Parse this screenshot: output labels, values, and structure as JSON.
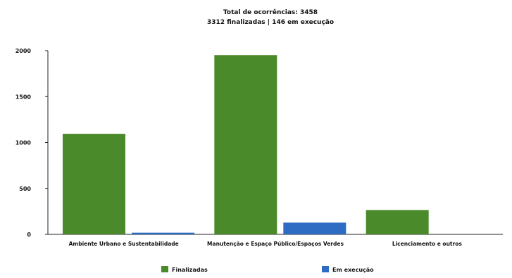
{
  "chart_data": {
    "type": "bar",
    "title": "Total de ocorrências: 3458",
    "subtitle": "3312 finalizadas | 146 em execução",
    "categories": [
      "Ambiente Urbano e Sustentabilidade",
      "Manutenção e Espaço Público/Espaços Verdes",
      "Licenciamento e outros"
    ],
    "series": [
      {
        "name": "Finalizadas",
        "color": "#4b8a2b",
        "values": [
          1095,
          1952,
          265
        ]
      },
      {
        "name": "Em execução",
        "color": "#2e6bc2",
        "values": [
          18,
          128,
          0
        ]
      }
    ],
    "yticks": [
      0,
      500,
      1000,
      1500,
      2000
    ],
    "ylim": [
      0,
      2000
    ],
    "xlabel": "",
    "ylabel": "",
    "grid": false,
    "legend_position": "bottom"
  }
}
